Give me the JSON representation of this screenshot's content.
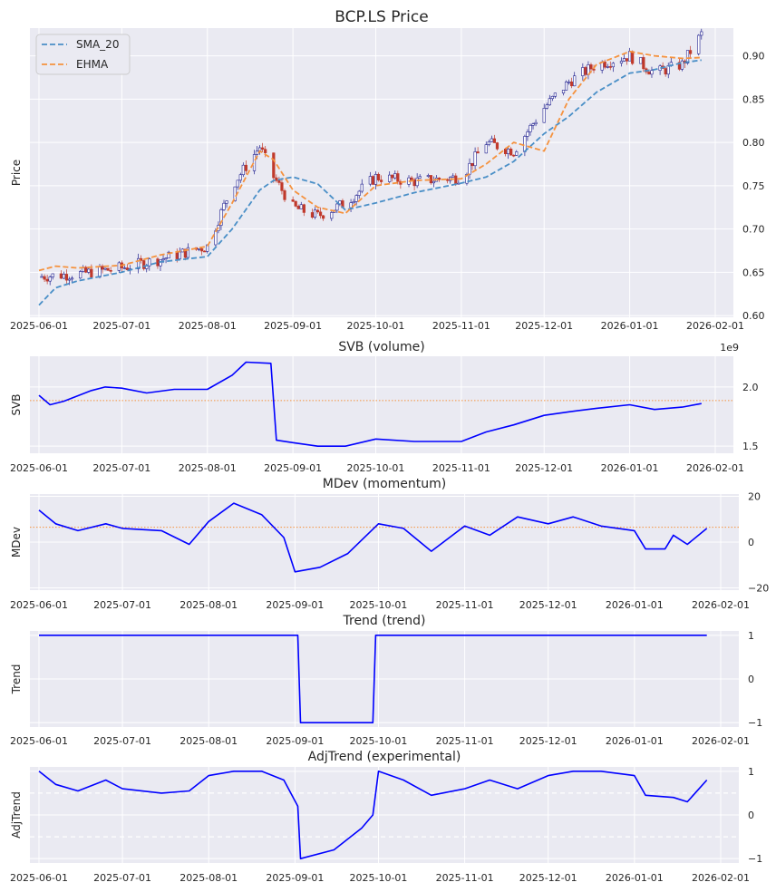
{
  "chart_data": [
    {
      "type": "candlestick",
      "title": "BCP.LS Price",
      "ylabel": "Price",
      "xlabel": "",
      "xlim": [
        "2025-06-01",
        "2026-02-01"
      ],
      "ylim": [
        0.598,
        0.932
      ],
      "x_ticks": [
        "2025-06-01",
        "2025-07-01",
        "2025-08-01",
        "2025-09-01",
        "2025-10-01",
        "2025-11-01",
        "2025-12-01",
        "2026-01-01",
        "2026-02-01"
      ],
      "y_ticks": [
        "0.60",
        "0.65",
        "0.70",
        "0.75",
        "0.80",
        "0.85",
        "0.90"
      ],
      "legend": [
        "SMA_20",
        "EHMA"
      ],
      "legend_position": "top-left",
      "candles_close_approx": {
        "dates": [
          "2025-06-01",
          "2025-06-15",
          "2025-07-01",
          "2025-07-15",
          "2025-08-01",
          "2025-08-10",
          "2025-08-20",
          "2025-08-25",
          "2025-09-01",
          "2025-09-10",
          "2025-09-20",
          "2025-10-01",
          "2025-10-15",
          "2025-11-01",
          "2025-11-10",
          "2025-11-20",
          "2025-12-01",
          "2025-12-10",
          "2025-12-20",
          "2026-01-01",
          "2026-01-10",
          "2026-01-20",
          "2026-01-27"
        ],
        "values": [
          0.645,
          0.648,
          0.655,
          0.665,
          0.68,
          0.75,
          0.795,
          0.76,
          0.725,
          0.715,
          0.73,
          0.76,
          0.755,
          0.76,
          0.8,
          0.79,
          0.84,
          0.87,
          0.89,
          0.9,
          0.88,
          0.89,
          0.925
        ]
      },
      "series": [
        {
          "name": "SMA_20",
          "color": "#4a8fc7",
          "dates": [
            "2025-06-01",
            "2025-06-07",
            "2025-06-15",
            "2025-07-01",
            "2025-07-15",
            "2025-08-01",
            "2025-08-10",
            "2025-08-20",
            "2025-08-25",
            "2025-09-01",
            "2025-09-10",
            "2025-09-20",
            "2025-10-01",
            "2025-10-15",
            "2025-11-01",
            "2025-11-10",
            "2025-11-20",
            "2025-12-01",
            "2025-12-10",
            "2025-12-20",
            "2026-01-01",
            "2026-01-10",
            "2026-01-20",
            "2026-01-27"
          ],
          "values": [
            0.612,
            0.632,
            0.64,
            0.65,
            0.662,
            0.668,
            0.7,
            0.745,
            0.756,
            0.76,
            0.752,
            0.722,
            0.73,
            0.742,
            0.753,
            0.76,
            0.778,
            0.81,
            0.83,
            0.858,
            0.88,
            0.884,
            0.892,
            0.895
          ]
        },
        {
          "name": "EHMA",
          "color": "#f5923e",
          "dates": [
            "2025-06-01",
            "2025-06-07",
            "2025-06-15",
            "2025-07-01",
            "2025-07-15",
            "2025-08-01",
            "2025-08-10",
            "2025-08-20",
            "2025-08-25",
            "2025-09-01",
            "2025-09-10",
            "2025-09-20",
            "2025-10-01",
            "2025-10-15",
            "2025-11-01",
            "2025-11-10",
            "2025-11-20",
            "2025-12-01",
            "2025-12-10",
            "2025-12-20",
            "2026-01-01",
            "2026-01-10",
            "2026-01-20",
            "2026-01-27"
          ],
          "values": [
            0.652,
            0.657,
            0.655,
            0.658,
            0.67,
            0.68,
            0.73,
            0.79,
            0.78,
            0.745,
            0.725,
            0.718,
            0.75,
            0.756,
            0.758,
            0.775,
            0.8,
            0.79,
            0.85,
            0.89,
            0.905,
            0.9,
            0.897,
            0.898
          ]
        }
      ]
    },
    {
      "type": "line",
      "title": "SVB (volume)",
      "ylabel": "SVB",
      "offset_text": "1e9",
      "xlim": [
        "2025-06-01",
        "2026-02-01"
      ],
      "ylim": [
        1.44,
        2.26
      ],
      "x_ticks": [
        "2025-06-01",
        "2025-07-01",
        "2025-08-01",
        "2025-09-01",
        "2025-10-01",
        "2025-11-01",
        "2025-12-01",
        "2026-01-01",
        "2026-02-01"
      ],
      "y_ticks": [
        "1.5",
        "2.0"
      ],
      "reference_line": 1.885,
      "series": [
        {
          "name": "SVB",
          "color": "#0000ff",
          "dates": [
            "2025-06-01",
            "2025-06-05",
            "2025-06-10",
            "2025-06-20",
            "2025-06-25",
            "2025-07-01",
            "2025-07-10",
            "2025-07-20",
            "2025-08-01",
            "2025-08-10",
            "2025-08-15",
            "2025-08-24",
            "2025-08-26",
            "2025-09-01",
            "2025-09-10",
            "2025-09-20",
            "2025-10-01",
            "2025-10-15",
            "2025-11-01",
            "2025-11-10",
            "2025-11-20",
            "2025-12-01",
            "2025-12-10",
            "2025-12-20",
            "2026-01-01",
            "2026-01-10",
            "2026-01-20",
            "2026-01-27"
          ],
          "values": [
            1.93,
            1.85,
            1.88,
            1.97,
            2.0,
            1.99,
            1.95,
            1.98,
            1.98,
            2.1,
            2.21,
            2.2,
            1.55,
            1.53,
            1.5,
            1.5,
            1.56,
            1.54,
            1.54,
            1.62,
            1.68,
            1.76,
            1.79,
            1.82,
            1.85,
            1.81,
            1.83,
            1.86
          ]
        }
      ]
    },
    {
      "type": "line",
      "title": "MDev (momentum)",
      "ylabel": "MDev",
      "xlim": [
        "2025-06-01",
        "2026-02-01"
      ],
      "ylim": [
        -21,
        21
      ],
      "x_ticks": [
        "2025-06-01",
        "2025-07-01",
        "2025-08-01",
        "2025-09-01",
        "2025-10-01",
        "2025-11-01",
        "2025-12-01",
        "2026-01-01",
        "2026-02-01"
      ],
      "y_ticks": [
        "-20",
        "0",
        "20"
      ],
      "reference_line": 6.5,
      "series": [
        {
          "name": "MDev",
          "color": "#0000ff",
          "dates": [
            "2025-06-01",
            "2025-06-07",
            "2025-06-15",
            "2025-06-25",
            "2025-07-01",
            "2025-07-15",
            "2025-07-25",
            "2025-08-01",
            "2025-08-10",
            "2025-08-20",
            "2025-08-28",
            "2025-09-01",
            "2025-09-10",
            "2025-09-20",
            "2025-10-01",
            "2025-10-10",
            "2025-10-20",
            "2025-11-01",
            "2025-11-10",
            "2025-11-20",
            "2025-12-01",
            "2025-12-10",
            "2025-12-20",
            "2026-01-01",
            "2026-01-05",
            "2026-01-12",
            "2026-01-15",
            "2026-01-20",
            "2026-01-27"
          ],
          "values": [
            14,
            8,
            5,
            8,
            6,
            5,
            -1,
            9,
            17,
            12,
            2,
            -13,
            -11,
            -5,
            8,
            6,
            -4,
            7,
            3,
            11,
            8,
            11,
            7,
            5,
            -3,
            -3,
            3,
            -1,
            6
          ]
        }
      ]
    },
    {
      "type": "line",
      "title": "Trend (trend)",
      "ylabel": "Trend",
      "xlim": [
        "2025-06-01",
        "2026-02-01"
      ],
      "ylim": [
        -1.1,
        1.1
      ],
      "x_ticks": [
        "2025-06-01",
        "2025-07-01",
        "2025-08-01",
        "2025-09-01",
        "2025-10-01",
        "2025-11-01",
        "2025-12-01",
        "2026-01-01",
        "2026-02-01"
      ],
      "y_ticks": [
        "-1",
        "0",
        "1"
      ],
      "series": [
        {
          "name": "Trend",
          "color": "#0000ff",
          "dates": [
            "2025-06-01",
            "2025-09-02",
            "2025-09-03",
            "2025-09-29",
            "2025-09-30",
            "2026-01-27"
          ],
          "values": [
            1,
            1,
            -1,
            -1,
            1,
            1
          ]
        }
      ]
    },
    {
      "type": "line",
      "title": "AdjTrend (experimental)",
      "ylabel": "AdjTrend",
      "xlim": [
        "2025-06-01",
        "2026-02-01"
      ],
      "ylim": [
        -1.1,
        1.1
      ],
      "x_ticks": [
        "2025-06-01",
        "2025-07-01",
        "2025-08-01",
        "2025-09-01",
        "2025-10-01",
        "2025-11-01",
        "2025-12-01",
        "2026-01-01",
        "2026-02-01"
      ],
      "y_ticks": [
        "-1",
        "0",
        "1"
      ],
      "reference_lines": [
        0.5,
        -0.5
      ],
      "series": [
        {
          "name": "AdjTrend",
          "color": "#0000ff",
          "dates": [
            "2025-06-01",
            "2025-06-07",
            "2025-06-15",
            "2025-06-25",
            "2025-07-01",
            "2025-07-15",
            "2025-07-25",
            "2025-08-01",
            "2025-08-10",
            "2025-08-20",
            "2025-08-28",
            "2025-09-02",
            "2025-09-03",
            "2025-09-15",
            "2025-09-25",
            "2025-09-29",
            "2025-10-01",
            "2025-10-10",
            "2025-10-20",
            "2025-11-01",
            "2025-11-10",
            "2025-11-20",
            "2025-12-01",
            "2025-12-10",
            "2025-12-20",
            "2026-01-01",
            "2026-01-05",
            "2026-01-15",
            "2026-01-20",
            "2026-01-27"
          ],
          "values": [
            1.0,
            0.7,
            0.55,
            0.8,
            0.6,
            0.5,
            0.55,
            0.9,
            1.0,
            1.0,
            0.8,
            0.2,
            -1.0,
            -0.8,
            -0.3,
            0.0,
            1.0,
            0.8,
            0.45,
            0.6,
            0.8,
            0.6,
            0.9,
            1.0,
            1.0,
            0.9,
            0.45,
            0.4,
            0.3,
            0.8
          ]
        }
      ]
    }
  ]
}
